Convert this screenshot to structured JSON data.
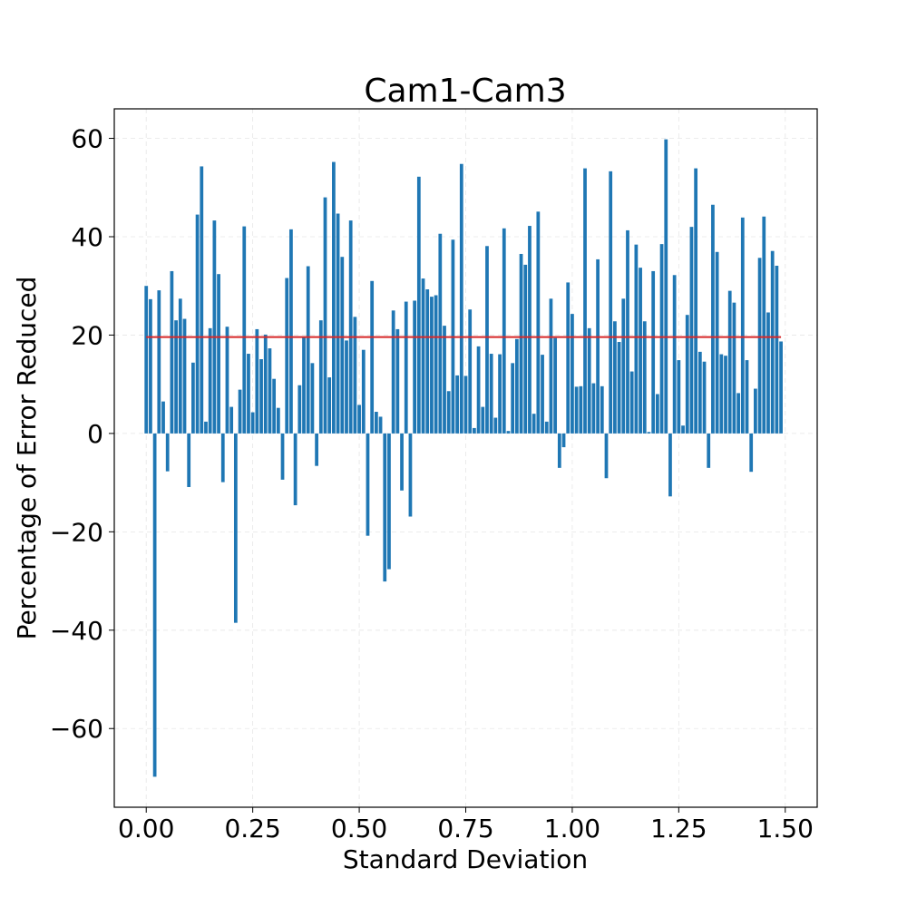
{
  "chart_data": {
    "type": "bar",
    "title": "Cam1-Cam3",
    "xlabel": "Standard Deviation",
    "ylabel": "Percentage of Error Reduced",
    "xlim": [
      -0.075,
      1.575
    ],
    "ylim": [
      -76,
      66
    ],
    "x_ticks": [
      0.0,
      0.25,
      0.5,
      0.75,
      1.0,
      1.25,
      1.5
    ],
    "x_tick_labels": [
      "0.00",
      "0.25",
      "0.50",
      "0.75",
      "1.00",
      "1.25",
      "1.50"
    ],
    "y_ticks": [
      -60,
      -40,
      -20,
      0,
      20,
      40,
      60
    ],
    "y_tick_labels": [
      "−60",
      "−40",
      "−20",
      "0",
      "20",
      "40",
      "60"
    ],
    "grid": true,
    "bar_width": 0.008,
    "bar_color": "#1f77b4",
    "mean_line": {
      "value": 19.6,
      "x_range": [
        0.0,
        1.49
      ],
      "color": "#d62728"
    },
    "x_start": 0.0,
    "x_step": 0.01,
    "values": [
      30.0,
      27.3,
      -69.8,
      29.1,
      6.5,
      -7.7,
      33.0,
      23.0,
      27.4,
      23.3,
      -10.9,
      14.4,
      44.5,
      54.3,
      2.4,
      21.4,
      43.3,
      32.4,
      -9.9,
      21.7,
      5.4,
      -38.5,
      8.9,
      42.1,
      16.2,
      4.3,
      21.2,
      15.1,
      20.1,
      17.3,
      11.1,
      5.2,
      -9.4,
      31.6,
      41.5,
      -14.6,
      9.8,
      19.5,
      34.0,
      14.3,
      -6.6,
      23.0,
      48.0,
      11.4,
      55.2,
      44.7,
      35.9,
      18.9,
      43.3,
      23.7,
      5.8,
      17.0,
      -20.8,
      31.0,
      4.4,
      3.4,
      -30.1,
      -27.6,
      25.0,
      21.2,
      -11.6,
      26.8,
      -16.9,
      27.0,
      52.2,
      31.5,
      29.3,
      27.8,
      28.1,
      40.6,
      21.9,
      8.6,
      39.4,
      11.8,
      54.8,
      11.7,
      25.2,
      1.1,
      17.7,
      5.4,
      38.1,
      16.2,
      3.2,
      16.1,
      41.7,
      0.5,
      14.3,
      19.2,
      36.5,
      34.3,
      42.2,
      4.0,
      45.1,
      16.0,
      2.4,
      27.4,
      19.4,
      -7.0,
      -2.8,
      30.7,
      24.3,
      9.5,
      9.6,
      53.9,
      21.4,
      10.2,
      35.4,
      9.6,
      -9.1,
      53.3,
      22.8,
      18.6,
      27.4,
      41.3,
      12.6,
      38.4,
      33.7,
      22.8,
      0.3,
      33.0,
      8.0,
      38.5,
      59.8,
      -12.8,
      32.2,
      14.9,
      1.6,
      24.1,
      42.0,
      53.9,
      16.6,
      14.6,
      -7.0,
      46.5,
      36.9,
      16.1,
      15.8,
      29.0,
      26.6,
      8.2,
      43.9,
      14.9,
      -7.8,
      9.1,
      35.7,
      44.1,
      24.6,
      37.1,
      34.1,
      18.7
    ]
  }
}
